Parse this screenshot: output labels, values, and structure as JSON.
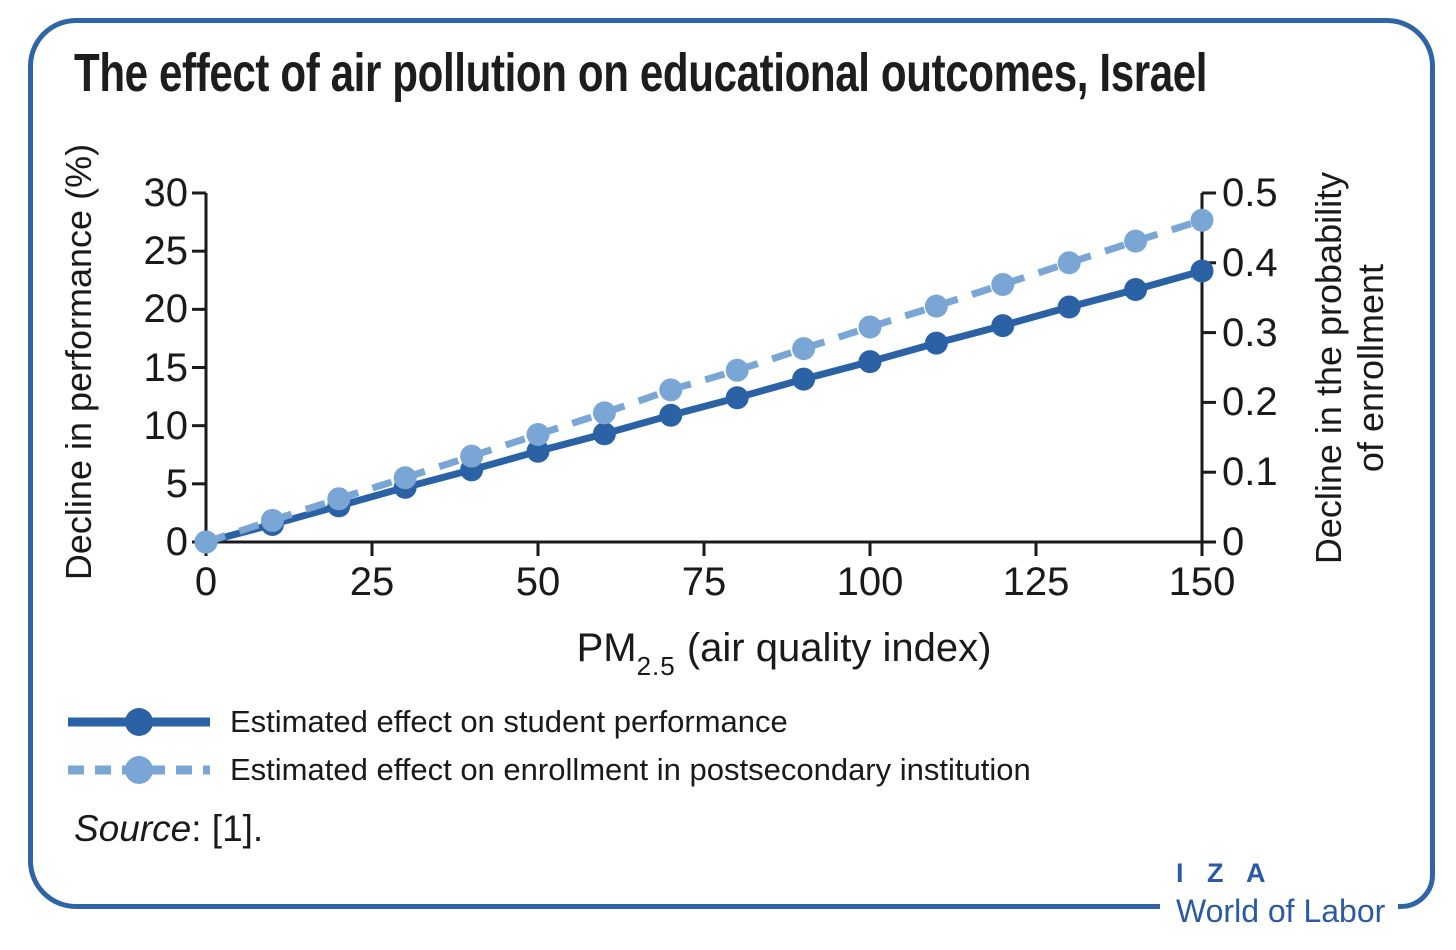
{
  "title": "The effect of air pollution on educational outcomes, Israel",
  "chart_data": {
    "type": "line",
    "title": "The effect of air pollution on educational outcomes, Israel",
    "x": [
      0,
      10,
      20,
      30,
      40,
      50,
      60,
      70,
      80,
      90,
      100,
      110,
      120,
      130,
      140,
      150
    ],
    "xlabel": {
      "base": "PM",
      "sub": "2.5",
      "rest": " (air quality index)"
    },
    "xlim": [
      0,
      150
    ],
    "xticks": [
      0,
      25,
      50,
      75,
      100,
      125,
      150
    ],
    "y_left": {
      "label": "Decline in performance (%)",
      "lim": [
        0,
        30
      ],
      "ticks": [
        0,
        5,
        10,
        15,
        20,
        25,
        30
      ]
    },
    "y_right": {
      "label_line1": "Decline in the probability",
      "label_line2": "of enrollment",
      "lim": [
        0,
        0.5
      ],
      "ticks": [
        0,
        0.1,
        0.2,
        0.3,
        0.4,
        0.5
      ]
    },
    "grid": false,
    "legend_position": "below-left",
    "series": [
      {
        "name": "Estimated effect on student performance",
        "axis": "left",
        "line_style": "solid",
        "marker": "circle",
        "color": "#2b62a6",
        "values": [
          0,
          1.5,
          3.1,
          4.7,
          6.2,
          7.8,
          9.3,
          10.9,
          12.4,
          14.0,
          15.5,
          17.1,
          18.6,
          20.2,
          21.7,
          23.3
        ]
      },
      {
        "name": "Estimated effect on enrollment in postsecondary institution",
        "axis": "right",
        "line_style": "dashed",
        "marker": "circle",
        "color": "#7aa6d6",
        "values": [
          0,
          0.031,
          0.062,
          0.092,
          0.123,
          0.154,
          0.185,
          0.218,
          0.246,
          0.277,
          0.308,
          0.338,
          0.369,
          0.4,
          0.431,
          0.461
        ]
      }
    ]
  },
  "source": {
    "label": "Source",
    "text": ": [1]."
  },
  "logo": {
    "line1": "I Z A",
    "line2": "World of Labor"
  },
  "colors": {
    "series_performance": "#2b62a6",
    "series_enrollment": "#7aa6d6",
    "frame": "#2f65a5",
    "logo": "#2b5aa5",
    "axis": "#1a1a1a",
    "background": "#ffffff"
  }
}
